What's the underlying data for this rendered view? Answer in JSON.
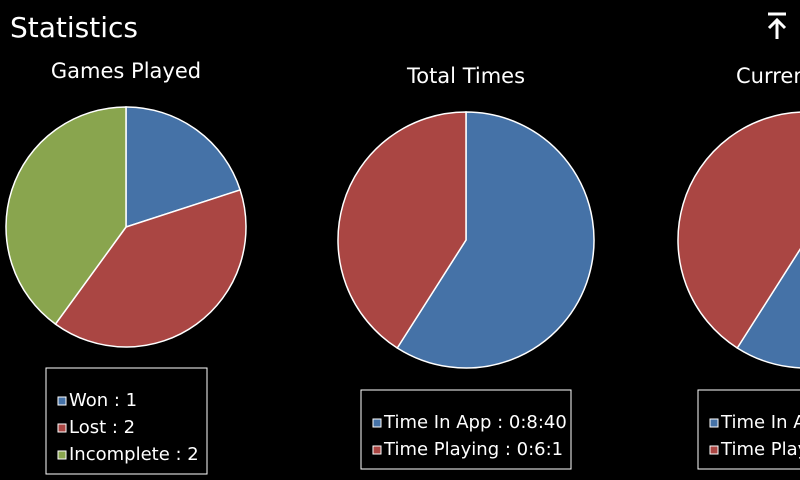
{
  "title": "Statistics",
  "chart_data": [
    {
      "type": "pie",
      "title": "Games Played",
      "categories": [
        "Won : 1",
        "Lost : 2",
        "Incomplete : 2"
      ],
      "values": [
        1,
        2,
        2
      ],
      "colors": [
        "#4572a7",
        "#aa4643",
        "#89a54e"
      ]
    },
    {
      "type": "pie",
      "title": "Total Times",
      "categories": [
        "Time In App : 0:8:40",
        "Time Playing : 0:6:1"
      ],
      "values": [
        520,
        361
      ],
      "colors": [
        "#4572a7",
        "#aa4643"
      ]
    },
    {
      "type": "pie",
      "title": "Curren",
      "categories": [
        "Time In A",
        "Time Play"
      ],
      "values": [
        520,
        361
      ],
      "colors": [
        "#4572a7",
        "#aa4643"
      ]
    }
  ]
}
